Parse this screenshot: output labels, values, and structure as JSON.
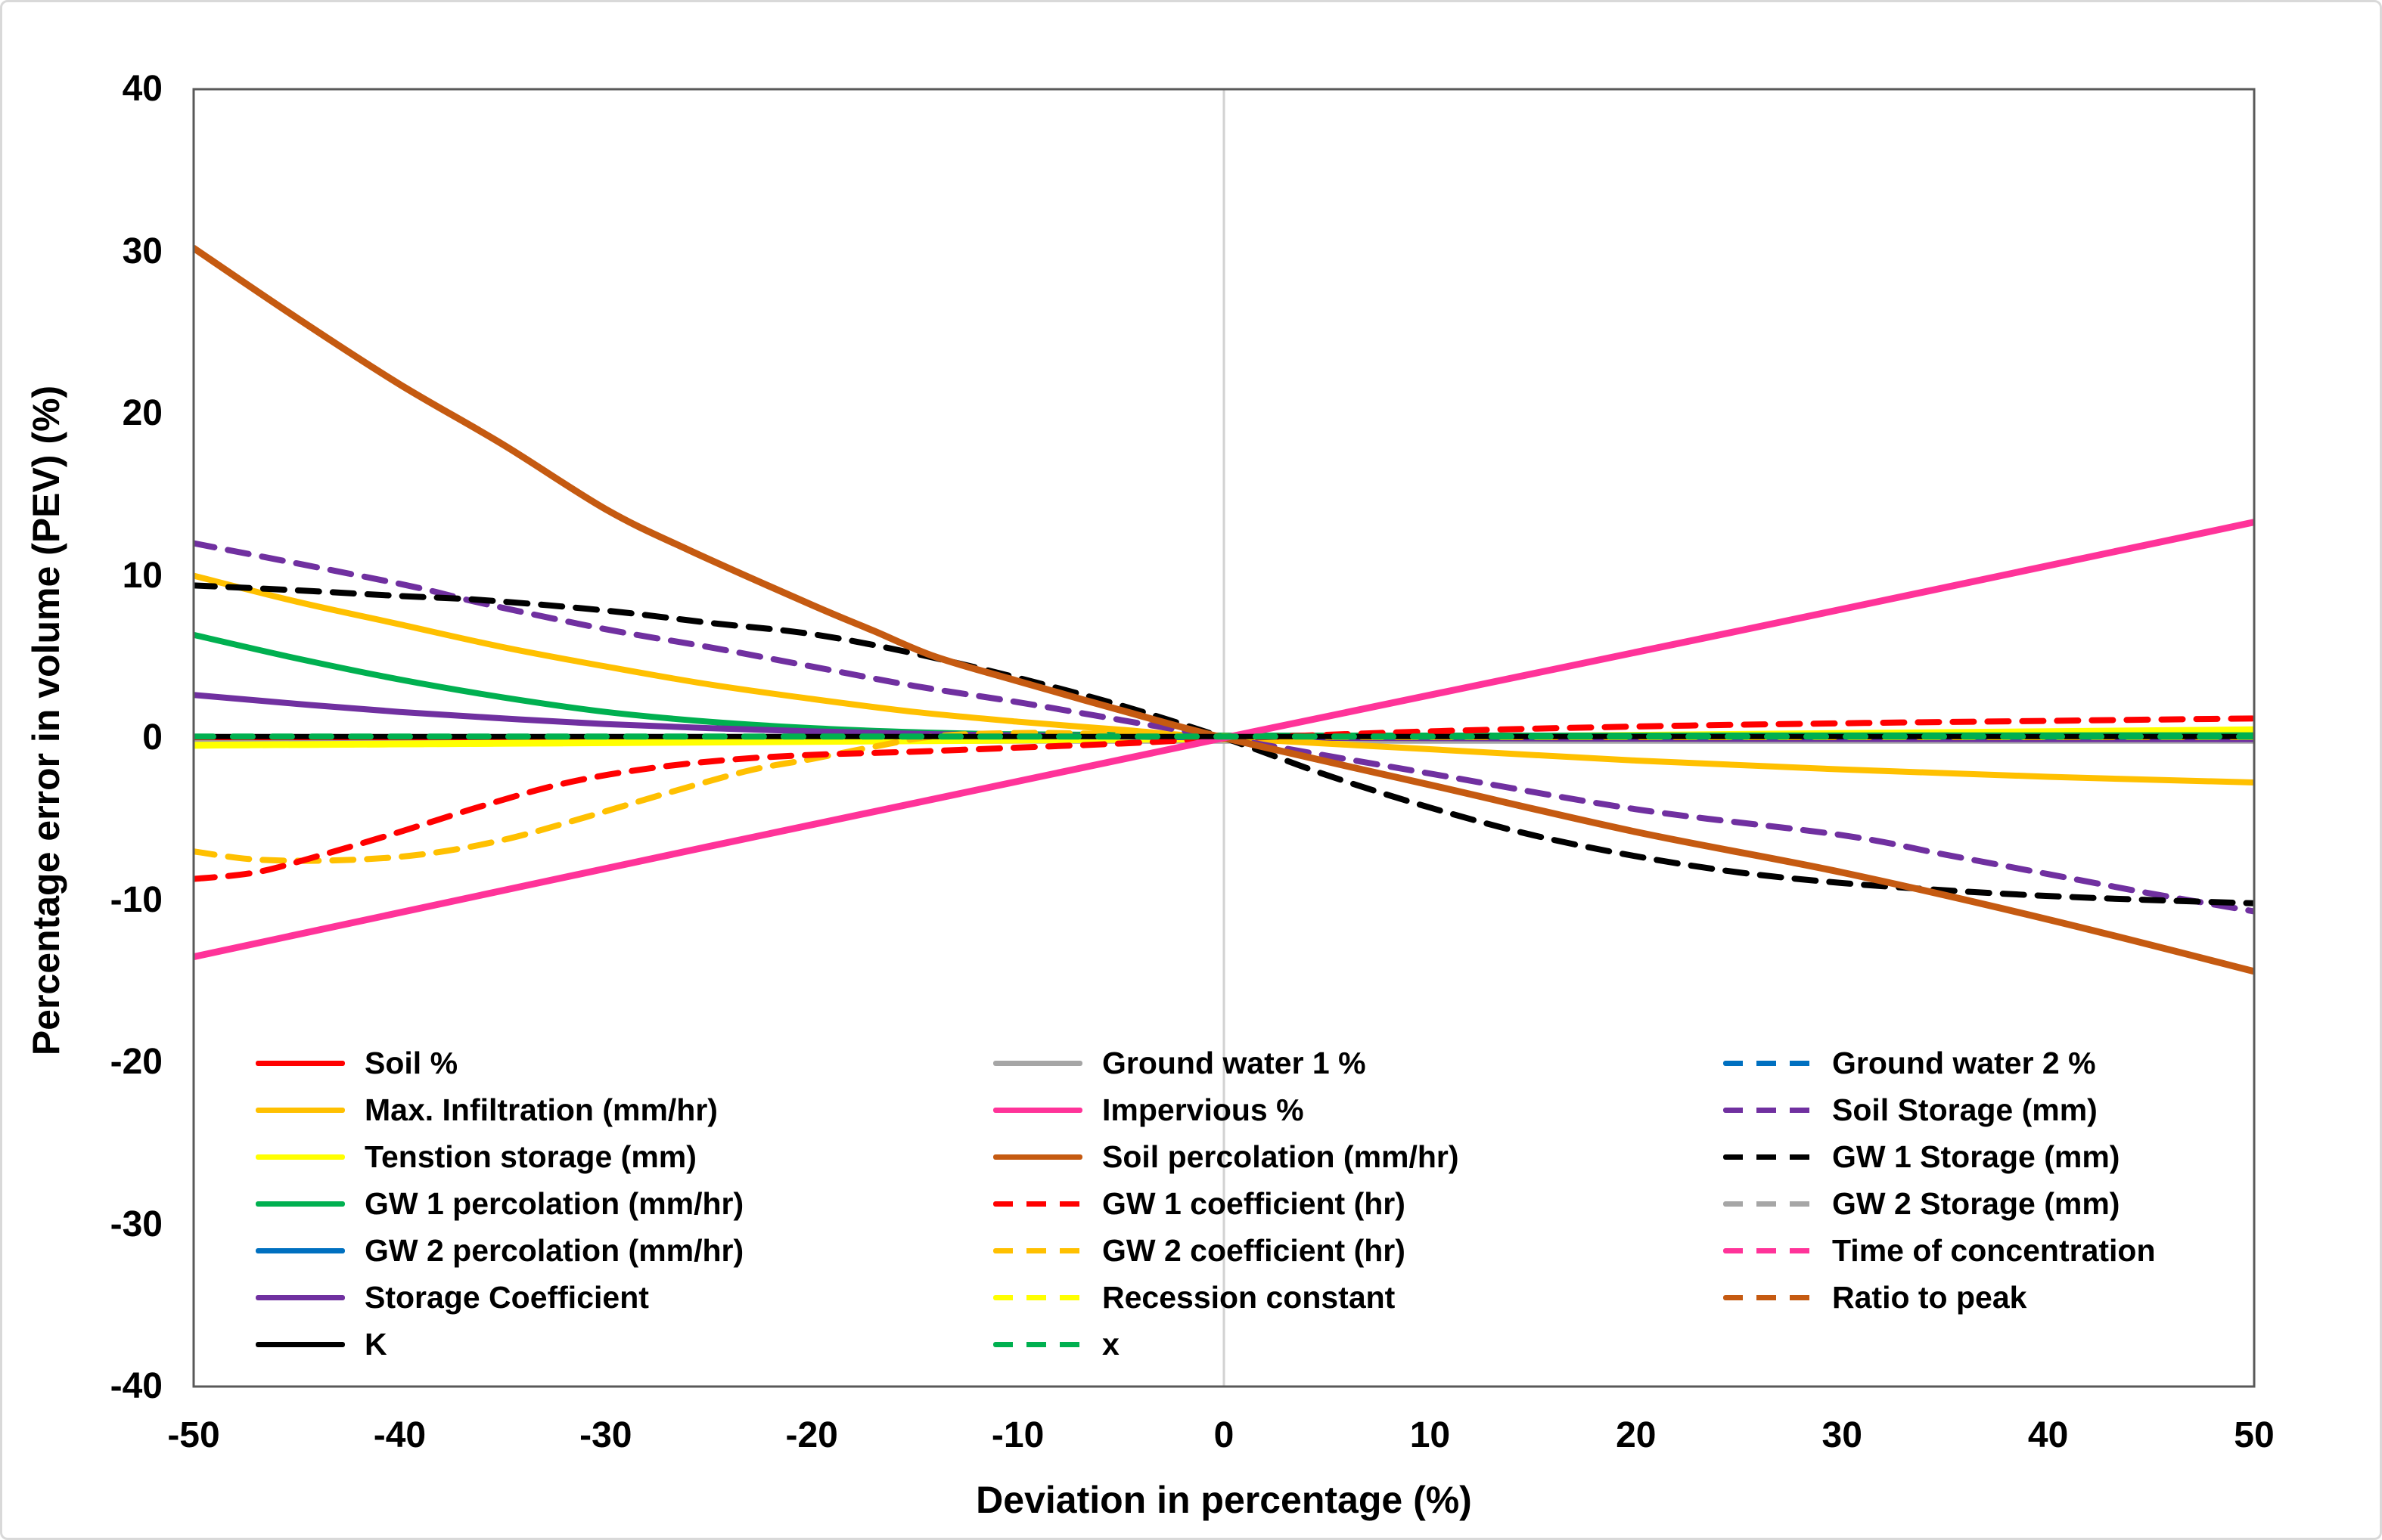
{
  "chart_data": {
    "type": "line",
    "title": "",
    "xlabel": "Deviation in percentage (%)",
    "ylabel": "Percentage error in volume (PEV) (%)",
    "xlim": [
      -50,
      50
    ],
    "ylim": [
      -40,
      40
    ],
    "x_ticks": [
      -50,
      -40,
      -30,
      -20,
      -10,
      0,
      10,
      20,
      30,
      40,
      50
    ],
    "y_ticks": [
      40,
      30,
      20,
      10,
      0,
      -10,
      -20,
      -30,
      -40
    ],
    "grid": {
      "horizontal": false,
      "vertical_zero_line": true
    },
    "legend_position": "inside-bottom, 3 columns",
    "colors": {
      "axis_border": "#595959",
      "zero_gridline": "#d2d2d2",
      "figure_border": "#d9d9d9",
      "red": "#FF0000",
      "orange": "#FFC000",
      "yellow": "#FFFF00",
      "green": "#00B050",
      "blue": "#0070C0",
      "purple": "#7030A0",
      "black": "#000000",
      "gray": "#A6A6A6",
      "pink": "#FF3399",
      "brown": "#C55A11"
    },
    "series": [
      {
        "key": "soil_pct",
        "label": "Soil %",
        "color": "#FF0000",
        "dash": false,
        "width": 7,
        "points": [
          [
            -50,
            0.02
          ],
          [
            0,
            0.02
          ],
          [
            50,
            0.02
          ]
        ]
      },
      {
        "key": "max_infiltration",
        "label": "Max. Infiltration (mm/hr)",
        "color": "#FFC000",
        "dash": false,
        "width": 8,
        "points": [
          [
            -50,
            10
          ],
          [
            -45,
            8.4
          ],
          [
            -40,
            7
          ],
          [
            -35,
            5.6
          ],
          [
            -30,
            4.4
          ],
          [
            -25,
            3.3
          ],
          [
            -20,
            2.4
          ],
          [
            -15,
            1.6
          ],
          [
            -10,
            1
          ],
          [
            -5,
            0.5
          ],
          [
            0,
            0
          ],
          [
            10,
            -0.7
          ],
          [
            20,
            -1.4
          ],
          [
            30,
            -1.95
          ],
          [
            40,
            -2.4
          ],
          [
            50,
            -2.75
          ]
        ]
      },
      {
        "key": "tension_storage",
        "label": "Tenstion storage (mm)",
        "color": "#FFFF00",
        "dash": false,
        "width": 9,
        "points": [
          [
            -50,
            -0.45
          ],
          [
            0,
            -0.05
          ],
          [
            50,
            0.5
          ]
        ]
      },
      {
        "key": "gw1_percolation",
        "label": "GW 1 percolation (mm/hr)",
        "color": "#00B050",
        "dash": false,
        "width": 8,
        "points": [
          [
            -50,
            6.35
          ],
          [
            -45,
            4.9
          ],
          [
            -40,
            3.6
          ],
          [
            -35,
            2.5
          ],
          [
            -30,
            1.6
          ],
          [
            -25,
            1
          ],
          [
            -20,
            0.6
          ],
          [
            -15,
            0.35
          ],
          [
            -10,
            0.22
          ],
          [
            0,
            0.14
          ],
          [
            20,
            0.14
          ],
          [
            50,
            0.16
          ]
        ]
      },
      {
        "key": "gw2_percolation",
        "label": "GW 2 percolation (mm/hr)",
        "color": "#0070C0",
        "dash": false,
        "width": 7,
        "points": [
          [
            -50,
            -0.12
          ],
          [
            0,
            -0.12
          ],
          [
            50,
            -0.12
          ]
        ]
      },
      {
        "key": "storage_coefficient",
        "label": "Storage Coefficient",
        "color": "#7030A0",
        "dash": false,
        "width": 8,
        "points": [
          [
            -50,
            2.65
          ],
          [
            -45,
            2.1
          ],
          [
            -40,
            1.6
          ],
          [
            -35,
            1.2
          ],
          [
            -30,
            0.85
          ],
          [
            -25,
            0.6
          ],
          [
            -20,
            0.4
          ],
          [
            -15,
            0.25
          ],
          [
            -10,
            0.15
          ],
          [
            0,
            0.02
          ],
          [
            25,
            -0.06
          ],
          [
            50,
            -0.08
          ]
        ]
      },
      {
        "key": "k",
        "label": "K",
        "color": "#000000",
        "dash": false,
        "width": 7,
        "points": [
          [
            -50,
            0.08
          ],
          [
            0,
            0.08
          ],
          [
            50,
            0.08
          ]
        ]
      },
      {
        "key": "gw1_pct",
        "label": "Ground water 1 %",
        "color": "#A6A6A6",
        "dash": false,
        "width": 6,
        "points": [
          [
            -50,
            -0.22
          ],
          [
            0,
            -0.22
          ],
          [
            50,
            -0.22
          ]
        ]
      },
      {
        "key": "impervious",
        "label": "Impervious %",
        "color": "#FF3399",
        "dash": false,
        "width": 9,
        "points": [
          [
            -50,
            -13.5
          ],
          [
            -25,
            -6.7
          ],
          [
            0,
            0
          ],
          [
            25,
            6.6
          ],
          [
            50,
            13.3
          ]
        ]
      },
      {
        "key": "soil_percolation",
        "label": "Soil percolation (mm/hr)",
        "color": "#C55A11",
        "dash": false,
        "width": 9,
        "points": [
          [
            -50,
            30.2
          ],
          [
            -45,
            25.9
          ],
          [
            -40,
            21.8
          ],
          [
            -35,
            18.1
          ],
          [
            -30,
            14.1
          ],
          [
            -26,
            11.6
          ],
          [
            -20,
            8.2
          ],
          [
            -17,
            6.6
          ],
          [
            -14,
            5
          ],
          [
            -10,
            3.5
          ],
          [
            -5,
            1.7
          ],
          [
            0,
            0
          ],
          [
            10,
            -2.9
          ],
          [
            20,
            -5.8
          ],
          [
            30,
            -8.3
          ],
          [
            40,
            -11.2
          ],
          [
            50,
            -14.4
          ]
        ]
      },
      {
        "key": "gw1_coefficient",
        "label": "GW 1 coefficient (hr)",
        "color": "#FF0000",
        "dash": true,
        "width": 8,
        "points": [
          [
            -50,
            -8.7
          ],
          [
            -47,
            -8.3
          ],
          [
            -44,
            -7.3
          ],
          [
            -40,
            -5.8
          ],
          [
            -36,
            -4.2
          ],
          [
            -32,
            -2.8
          ],
          [
            -28,
            -1.9
          ],
          [
            -24,
            -1.35
          ],
          [
            -20,
            -1.05
          ],
          [
            -15,
            -0.85
          ],
          [
            -10,
            -0.6
          ],
          [
            -5,
            -0.35
          ],
          [
            0,
            -0.05
          ],
          [
            10,
            0.4
          ],
          [
            20,
            0.7
          ],
          [
            30,
            0.9
          ],
          [
            40,
            1.05
          ],
          [
            50,
            1.2
          ]
        ]
      },
      {
        "key": "gw2_coefficient",
        "label": "GW 2 coefficient (hr)",
        "color": "#FFC000",
        "dash": true,
        "width": 8,
        "points": [
          [
            -50,
            -7
          ],
          [
            -47,
            -7.5
          ],
          [
            -43,
            -7.55
          ],
          [
            -39,
            -7.2
          ],
          [
            -35,
            -6.3
          ],
          [
            -31,
            -4.9
          ],
          [
            -27,
            -3.4
          ],
          [
            -23,
            -2
          ],
          [
            -20,
            -1.3
          ],
          [
            -17,
            -0.55
          ],
          [
            -14,
            0.1
          ],
          [
            -10,
            0.3
          ],
          [
            -6,
            0.25
          ],
          [
            0,
            0.1
          ],
          [
            10,
            0.05
          ],
          [
            50,
            0.05
          ]
        ]
      },
      {
        "key": "recession_constant",
        "label": "Recession constant",
        "color": "#FFFF00",
        "dash": true,
        "width": 7,
        "points": [
          [
            -50,
            -0.5
          ],
          [
            0,
            -0.08
          ],
          [
            50,
            0.42
          ]
        ]
      },
      {
        "key": "x",
        "label": "x",
        "color": "#00B050",
        "dash": true,
        "width": 8,
        "points": [
          [
            -50,
            0.08
          ],
          [
            0,
            0.08
          ],
          [
            50,
            0.08
          ]
        ]
      },
      {
        "key": "gw2_pct",
        "label": "Ground water 2 %",
        "color": "#0070C0",
        "dash": true,
        "width": 7,
        "points": [
          [
            -50,
            -0.05
          ],
          [
            0,
            -0.05
          ],
          [
            50,
            -0.05
          ]
        ]
      },
      {
        "key": "soil_storage",
        "label": "Soil Storage (mm)",
        "color": "#7030A0",
        "dash": true,
        "width": 8,
        "points": [
          [
            -50,
            12
          ],
          [
            -40,
            9.5
          ],
          [
            -36,
            8.3
          ],
          [
            -30,
            6.7
          ],
          [
            -25,
            5.6
          ],
          [
            -20,
            4.4
          ],
          [
            -15,
            3.2
          ],
          [
            -10,
            2.2
          ],
          [
            -5,
            1.1
          ],
          [
            0,
            0
          ],
          [
            10,
            -2.2
          ],
          [
            20,
            -4.4
          ],
          [
            30,
            -6
          ],
          [
            35,
            -7.2
          ],
          [
            40,
            -8.4
          ],
          [
            45,
            -9.6
          ],
          [
            50,
            -10.7
          ]
        ]
      },
      {
        "key": "gw1_storage",
        "label": "GW 1 Storage (mm)",
        "color": "#000000",
        "dash": true,
        "width": 8,
        "points": [
          [
            -50,
            9.4
          ],
          [
            -45,
            9.1
          ],
          [
            -40,
            8.75
          ],
          [
            -36,
            8.5
          ],
          [
            -30,
            7.85
          ],
          [
            -25,
            7.1
          ],
          [
            -20,
            6.4
          ],
          [
            -15,
            5.2
          ],
          [
            -10,
            3.7
          ],
          [
            -5,
            2
          ],
          [
            0,
            0
          ],
          [
            5,
            -2.3
          ],
          [
            10,
            -4.3
          ],
          [
            15,
            -6
          ],
          [
            20,
            -7.3
          ],
          [
            25,
            -8.3
          ],
          [
            30,
            -8.95
          ],
          [
            35,
            -9.4
          ],
          [
            40,
            -9.75
          ],
          [
            45,
            -10
          ],
          [
            50,
            -10.2
          ]
        ]
      },
      {
        "key": "gw2_storage",
        "label": "GW 2 Storage (mm)",
        "color": "#A6A6A6",
        "dash": true,
        "width": 7,
        "points": [
          [
            -50,
            -0.16
          ],
          [
            0,
            -0.16
          ],
          [
            50,
            -0.16
          ]
        ]
      },
      {
        "key": "time_of_concentration",
        "label": "Time of concentration",
        "color": "#FF3399",
        "dash": true,
        "width": 7,
        "points": [
          [
            -50,
            -0.1
          ],
          [
            0,
            -0.1
          ],
          [
            50,
            -0.1
          ]
        ]
      },
      {
        "key": "ratio_to_peak",
        "label": "Ratio to peak",
        "color": "#C55A11",
        "dash": true,
        "width": 7,
        "points": [
          [
            -50,
            -0.02
          ],
          [
            0,
            -0.02
          ],
          [
            50,
            -0.02
          ]
        ]
      }
    ],
    "draw_order": [
      "ratio_to_peak",
      "time_of_concentration",
      "gw2_storage",
      "gw2_pct",
      "gw2_percolation",
      "gw1_pct",
      "soil_pct",
      "recession_constant",
      "tension_storage",
      "gw1_percolation",
      "storage_coefficient",
      "max_infiltration",
      "gw2_coefficient",
      "gw1_coefficient",
      "soil_storage",
      "gw1_storage",
      "soil_percolation",
      "impervious",
      "k",
      "x"
    ],
    "legend_columns": [
      [
        "soil_pct",
        "max_infiltration",
        "tension_storage",
        "gw1_percolation",
        "gw2_percolation",
        "storage_coefficient",
        "k"
      ],
      [
        "gw1_pct",
        "impervious",
        "soil_percolation",
        "gw1_coefficient",
        "gw2_coefficient",
        "recession_constant",
        "x"
      ],
      [
        "gw2_pct",
        "soil_storage",
        "gw1_storage",
        "gw2_storage",
        "time_of_concentration",
        "ratio_to_peak"
      ]
    ]
  }
}
